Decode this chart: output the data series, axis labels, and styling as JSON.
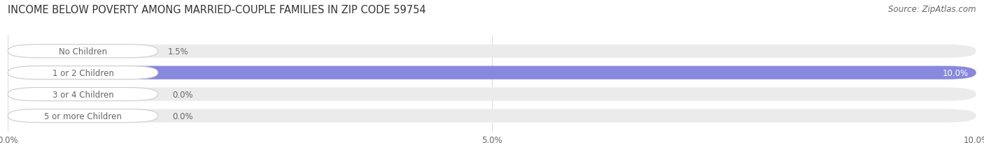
{
  "title": "INCOME BELOW POVERTY AMONG MARRIED-COUPLE FAMILIES IN ZIP CODE 59754",
  "source": "Source: ZipAtlas.com",
  "categories": [
    "No Children",
    "1 or 2 Children",
    "3 or 4 Children",
    "5 or more Children"
  ],
  "values": [
    1.5,
    10.0,
    0.0,
    0.0
  ],
  "bar_colors": [
    "#5ECFCF",
    "#8888DD",
    "#F09AAE",
    "#F5C98A"
  ],
  "bar_bg_color": "#EBEBEB",
  "xlim": [
    0,
    10.0
  ],
  "xticks": [
    0.0,
    5.0,
    10.0
  ],
  "xticklabels": [
    "0.0%",
    "5.0%",
    "10.0%"
  ],
  "title_fontsize": 10.5,
  "source_fontsize": 8.5,
  "label_fontsize": 8.5,
  "tick_fontsize": 8.5,
  "background_color": "#FFFFFF",
  "bar_height": 0.62,
  "label_color": "#666666",
  "title_color": "#333333",
  "grid_color": "#DDDDDD",
  "pill_edge_color": "#CCCCCC",
  "value_label_color": "#666666",
  "value_label_inside_color": "#FFFFFF"
}
